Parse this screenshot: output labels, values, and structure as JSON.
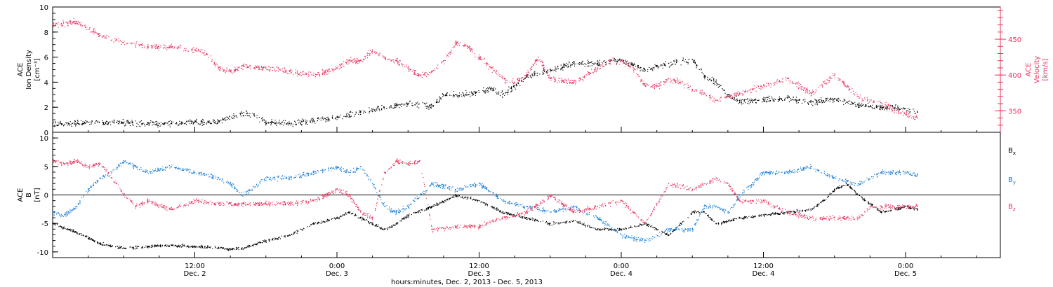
{
  "colors": {
    "black": "#000000",
    "pink": "#e8325e",
    "blue": "#1a7fdb"
  },
  "chart_data": [
    {
      "type": "scatter",
      "panel": "top",
      "left_axis": {
        "lines": [
          "ACE",
          "Ion Density",
          "[cm⁻³]"
        ],
        "ylim": [
          0,
          10
        ],
        "ticks": [
          0,
          2,
          4,
          6,
          8,
          10
        ]
      },
      "right_axis": {
        "lines": [
          "ACE",
          "Velocity",
          "[km/s]"
        ],
        "ylim": [
          320,
          495
        ],
        "ticks": [
          350,
          400,
          450
        ],
        "color": "#e8325e"
      },
      "xlim_hours": [
        0,
        80
      ],
      "series": [
        {
          "axis": "left",
          "color": "#000000",
          "points": [
            [
              0,
              0.7
            ],
            [
              3,
              0.8
            ],
            [
              6,
              0.8
            ],
            [
              9,
              0.7
            ],
            [
              12,
              0.8
            ],
            [
              14,
              0.9
            ],
            [
              16,
              1.5
            ],
            [
              17,
              1.4
            ],
            [
              18,
              0.8
            ],
            [
              20,
              0.7
            ],
            [
              22,
              1.0
            ],
            [
              24,
              1.2
            ],
            [
              26,
              1.6
            ],
            [
              28,
              2.0
            ],
            [
              30,
              2.3
            ],
            [
              32,
              2.1
            ],
            [
              33,
              3.0
            ],
            [
              34,
              3.0
            ],
            [
              36,
              3.2
            ],
            [
              37,
              3.5
            ],
            [
              38,
              3.0
            ],
            [
              40,
              4.5
            ],
            [
              42,
              5.0
            ],
            [
              44,
              5.5
            ],
            [
              46,
              5.5
            ],
            [
              48,
              5.8
            ],
            [
              50,
              5.0
            ],
            [
              52,
              5.5
            ],
            [
              54,
              5.8
            ],
            [
              55,
              4.5
            ],
            [
              56,
              4.0
            ],
            [
              57,
              3.0
            ],
            [
              58,
              2.5
            ],
            [
              60,
              2.6
            ],
            [
              62,
              2.8
            ],
            [
              64,
              2.4
            ],
            [
              66,
              2.7
            ],
            [
              68,
              2.2
            ],
            [
              70,
              2.0
            ],
            [
              72,
              1.9
            ],
            [
              73,
              1.6
            ]
          ]
        },
        {
          "axis": "right",
          "color": "#e8325e",
          "points": [
            [
              0,
              470
            ],
            [
              2,
              475
            ],
            [
              4,
              455
            ],
            [
              6,
              445
            ],
            [
              8,
              440
            ],
            [
              10,
              440
            ],
            [
              12,
              435
            ],
            [
              13,
              430
            ],
            [
              14,
              410
            ],
            [
              15,
              405
            ],
            [
              16,
              413
            ],
            [
              18,
              410
            ],
            [
              20,
              405
            ],
            [
              22,
              400
            ],
            [
              24,
              410
            ],
            [
              25,
              420
            ],
            [
              26,
              420
            ],
            [
              27,
              435
            ],
            [
              28,
              425
            ],
            [
              29,
              420
            ],
            [
              30,
              410
            ],
            [
              31,
              400
            ],
            [
              32,
              405
            ],
            [
              33,
              420
            ],
            [
              34,
              445
            ],
            [
              35,
              440
            ],
            [
              36,
              425
            ],
            [
              37,
              410
            ],
            [
              38,
              395
            ],
            [
              39,
              390
            ],
            [
              40,
              400
            ],
            [
              41,
              425
            ],
            [
              42,
              395
            ],
            [
              44,
              390
            ],
            [
              46,
              410
            ],
            [
              47,
              420
            ],
            [
              48,
              420
            ],
            [
              49,
              410
            ],
            [
              50,
              385
            ],
            [
              51,
              385
            ],
            [
              52,
              395
            ],
            [
              53,
              390
            ],
            [
              54,
              380
            ],
            [
              55,
              375
            ],
            [
              56,
              365
            ],
            [
              57,
              370
            ],
            [
              58,
              375
            ],
            [
              60,
              385
            ],
            [
              62,
              395
            ],
            [
              64,
              375
            ],
            [
              66,
              400
            ],
            [
              68,
              370
            ],
            [
              70,
              360
            ],
            [
              72,
              345
            ],
            [
              73,
              340
            ]
          ]
        }
      ]
    },
    {
      "type": "scatter",
      "panel": "bottom",
      "left_axis": {
        "lines": [
          "ACE",
          "B",
          "[nT]"
        ],
        "ylim": [
          -11,
          11
        ],
        "ticks": [
          -10,
          -5,
          0,
          5,
          10
        ]
      },
      "xlim_hours": [
        0,
        80
      ],
      "zero_line": true,
      "legend": [
        {
          "label": "B",
          "sub": "x",
          "color": "#000000"
        },
        {
          "label": "B",
          "sub": "y",
          "color": "#1a7fdb"
        },
        {
          "label": "B",
          "sub": "z",
          "color": "#e8325e"
        }
      ],
      "x_axis": {
        "title": "hours:minutes, Dec.  2, 2013 - Dec.  5, 2013",
        "ticks": [
          {
            "hour": 12,
            "time": "12:00",
            "date": "Dec. 2"
          },
          {
            "hour": 24,
            "time": "0:00",
            "date": "Dec. 3"
          },
          {
            "hour": 36,
            "time": "12:00",
            "date": "Dec. 3"
          },
          {
            "hour": 48,
            "time": "0:00",
            "date": "Dec. 4"
          },
          {
            "hour": 60,
            "time": "12:00",
            "date": "Dec. 4"
          },
          {
            "hour": 72,
            "time": "0:00",
            "date": "Dec. 5"
          }
        ]
      },
      "series": [
        {
          "name": "Bx",
          "color": "#000000",
          "points": [
            [
              0,
              -5
            ],
            [
              2,
              -6.5
            ],
            [
              4,
              -8.5
            ],
            [
              6,
              -9.3
            ],
            [
              8,
              -9
            ],
            [
              10,
              -8.8
            ],
            [
              12,
              -9
            ],
            [
              14,
              -9.2
            ],
            [
              15,
              -9.5
            ],
            [
              16,
              -9.3
            ],
            [
              18,
              -8
            ],
            [
              20,
              -7
            ],
            [
              22,
              -5
            ],
            [
              24,
              -4
            ],
            [
              25,
              -3
            ],
            [
              26,
              -4
            ],
            [
              28,
              -6
            ],
            [
              29,
              -5
            ],
            [
              30,
              -3.5
            ],
            [
              32,
              -2
            ],
            [
              34,
              0
            ],
            [
              36,
              -1
            ],
            [
              38,
              -3
            ],
            [
              40,
              -4
            ],
            [
              42,
              -5
            ],
            [
              44,
              -4.5
            ],
            [
              46,
              -6
            ],
            [
              48,
              -6
            ],
            [
              50,
              -5
            ],
            [
              52,
              -7
            ],
            [
              53,
              -5
            ],
            [
              54,
              -3
            ],
            [
              55,
              -3
            ],
            [
              56,
              -5
            ],
            [
              58,
              -4
            ],
            [
              60,
              -3.5
            ],
            [
              62,
              -3
            ],
            [
              64,
              -2.5
            ],
            [
              65,
              -1
            ],
            [
              66,
              1
            ],
            [
              67,
              2
            ],
            [
              68,
              0
            ],
            [
              70,
              -3
            ],
            [
              72,
              -2
            ],
            [
              73,
              -2.5
            ]
          ]
        },
        {
          "name": "By",
          "color": "#1a7fdb",
          "points": [
            [
              0,
              -3
            ],
            [
              1,
              -3.5
            ],
            [
              2,
              -2
            ],
            [
              3,
              1
            ],
            [
              4,
              3
            ],
            [
              5,
              4
            ],
            [
              6,
              6
            ],
            [
              7,
              5
            ],
            [
              8,
              4
            ],
            [
              10,
              5
            ],
            [
              12,
              4
            ],
            [
              14,
              3
            ],
            [
              15,
              2
            ],
            [
              16,
              0
            ],
            [
              18,
              3
            ],
            [
              20,
              3
            ],
            [
              22,
              4
            ],
            [
              24,
              5
            ],
            [
              25,
              4
            ],
            [
              26,
              5
            ],
            [
              27,
              2
            ],
            [
              28,
              -2
            ],
            [
              29,
              -3
            ],
            [
              30,
              -2
            ],
            [
              31,
              0
            ],
            [
              32,
              2
            ],
            [
              34,
              1
            ],
            [
              36,
              2
            ],
            [
              38,
              -1
            ],
            [
              40,
              -2
            ],
            [
              42,
              -3
            ],
            [
              44,
              -2
            ],
            [
              46,
              -4
            ],
            [
              48,
              -7
            ],
            [
              50,
              -8
            ],
            [
              52,
              -6
            ],
            [
              54,
              -6
            ],
            [
              55,
              -2
            ],
            [
              56,
              -2
            ],
            [
              57,
              -3
            ],
            [
              58,
              0
            ],
            [
              60,
              4
            ],
            [
              62,
              4
            ],
            [
              64,
              5
            ],
            [
              66,
              3
            ],
            [
              68,
              2
            ],
            [
              70,
              4
            ],
            [
              72,
              4
            ],
            [
              73,
              3.5
            ]
          ]
        },
        {
          "name": "Bz",
          "color": "#e8325e",
          "points": [
            [
              0,
              6
            ],
            [
              1,
              5.5
            ],
            [
              2,
              6
            ],
            [
              3,
              5
            ],
            [
              4,
              5.5
            ],
            [
              5,
              3
            ],
            [
              6,
              0
            ],
            [
              7,
              -2
            ],
            [
              8,
              -1
            ],
            [
              10,
              -2.5
            ],
            [
              12,
              -1
            ],
            [
              14,
              -1.5
            ],
            [
              16,
              -1.5
            ],
            [
              18,
              -1.5
            ],
            [
              20,
              -1.5
            ],
            [
              22,
              -1
            ],
            [
              24,
              1
            ],
            [
              25,
              0
            ],
            [
              26,
              -3
            ],
            [
              27,
              -4
            ],
            [
              28,
              4
            ],
            [
              29,
              6
            ],
            [
              30,
              5.5
            ],
            [
              31,
              6
            ],
            [
              32,
              -6
            ],
            [
              34,
              -5.5
            ],
            [
              36,
              -5.5
            ],
            [
              38,
              -4
            ],
            [
              40,
              -3
            ],
            [
              42,
              0
            ],
            [
              44,
              -3
            ],
            [
              46,
              -2
            ],
            [
              48,
              -1
            ],
            [
              50,
              -5
            ],
            [
              52,
              2
            ],
            [
              54,
              1
            ],
            [
              56,
              3
            ],
            [
              57,
              2
            ],
            [
              58,
              -1
            ],
            [
              60,
              -1
            ],
            [
              62,
              -3
            ],
            [
              64,
              -4
            ],
            [
              66,
              -4
            ],
            [
              68,
              -4
            ],
            [
              69,
              -2
            ],
            [
              70,
              -2
            ],
            [
              72,
              -2
            ],
            [
              73,
              -2
            ]
          ]
        }
      ]
    }
  ]
}
